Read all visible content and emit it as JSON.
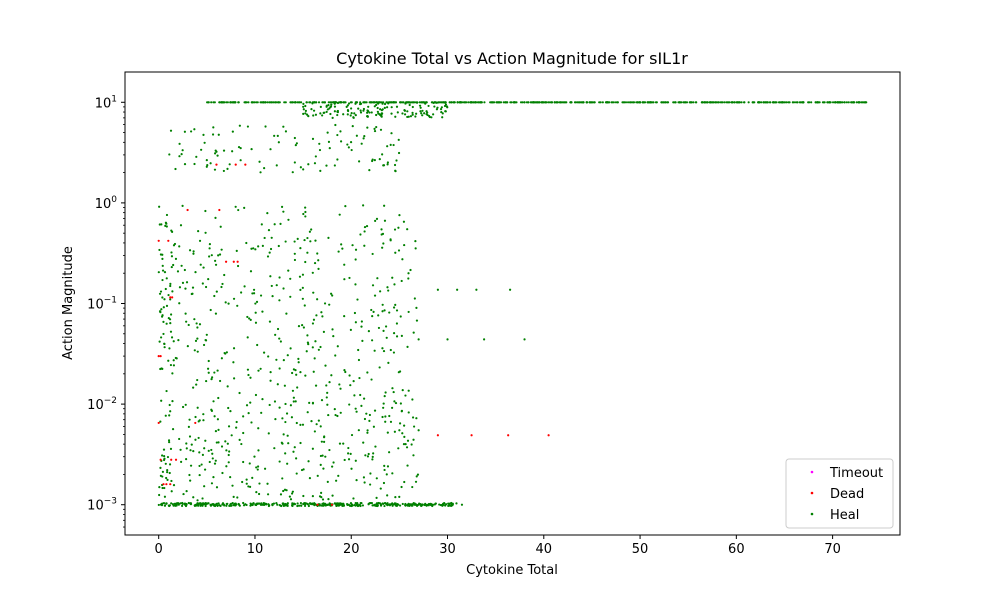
{
  "chart_data": {
    "type": "scatter",
    "title": "Cytokine Total vs Action Magnitude for sIL1r",
    "xlabel": "Cytokine Total",
    "ylabel": "Action Magnitude",
    "xlim": [
      -3.5,
      77
    ],
    "ylim": [
      0.0005,
      20
    ],
    "yscale": "log",
    "x_ticks": [
      0,
      10,
      20,
      30,
      40,
      50,
      60,
      70
    ],
    "x_tick_labels": [
      "0",
      "10",
      "20",
      "30",
      "40",
      "50",
      "60",
      "70"
    ],
    "y_ticks": [
      0.001,
      0.01,
      0.1,
      1,
      10
    ],
    "y_tick_labels": [
      {
        "base": "10",
        "exp": "−3"
      },
      {
        "base": "10",
        "exp": "−2"
      },
      {
        "base": "10",
        "exp": "−1"
      },
      {
        "base": "10",
        "exp": "0"
      },
      {
        "base": "10",
        "exp": "1"
      }
    ],
    "grid": false,
    "legend_position": "lower-right",
    "series": [
      {
        "name": "Timeout",
        "color": "#ff00ff",
        "points": []
      },
      {
        "name": "Dead",
        "color": "#ff0000",
        "points": [
          [
            6,
            2.4
          ],
          [
            8,
            2.4
          ],
          [
            9,
            2.4
          ],
          [
            3,
            0.85
          ],
          [
            6.3,
            0.85
          ],
          [
            0,
            0.42
          ],
          [
            1,
            0.42
          ],
          [
            7,
            0.26
          ],
          [
            7.8,
            0.26
          ],
          [
            8.2,
            0.26
          ],
          [
            1.2,
            0.115
          ],
          [
            1.4,
            0.115
          ],
          [
            0,
            0.03
          ],
          [
            0.2,
            0.03
          ],
          [
            0,
            0.0065
          ],
          [
            3.8,
            0.0065
          ],
          [
            0.2,
            0.0028
          ],
          [
            1.3,
            0.0028
          ],
          [
            1.8,
            0.0028
          ],
          [
            0.5,
            0.0016
          ],
          [
            0.8,
            0.0016
          ],
          [
            1.2,
            0.0016
          ],
          [
            16.5,
            0.001
          ],
          [
            18,
            0.001
          ],
          [
            29,
            0.0049
          ],
          [
            32.5,
            0.0049
          ],
          [
            36.3,
            0.0049
          ],
          [
            40.5,
            0.0049
          ]
        ]
      },
      {
        "name": "Heal",
        "color": "#008000",
        "points": [
          [
            29,
            0.137
          ],
          [
            31,
            0.137
          ],
          [
            33,
            0.137
          ],
          [
            36.5,
            0.137
          ],
          [
            27,
            0.044
          ],
          [
            30,
            0.044
          ],
          [
            33.8,
            0.044
          ],
          [
            38,
            0.044
          ],
          [
            25,
            0.0055
          ],
          [
            27,
            0.0055
          ],
          [
            31.5,
            0.001
          ],
          [
            28,
            0.001
          ]
        ],
        "generated": [
          {
            "x": [
              5,
              73.5
            ],
            "y": [
              10,
              10
            ],
            "count": 620,
            "seed": 11,
            "ydist": "const"
          },
          {
            "x": [
              15,
              30
            ],
            "y": [
              7,
              10
            ],
            "count": 150,
            "seed": 12,
            "ydist": "log"
          },
          {
            "x": [
              1,
              25
            ],
            "y": [
              2,
              6
            ],
            "count": 110,
            "seed": 13,
            "ydist": "log"
          },
          {
            "x": [
              0,
              27
            ],
            "y": [
              0.015,
              0.95
            ],
            "count": 360,
            "seed": 14,
            "ydist": "log"
          },
          {
            "x": [
              2,
              27
            ],
            "y": [
              0.0011,
              0.015
            ],
            "count": 300,
            "seed": 15,
            "ydist": "log"
          },
          {
            "x": [
              0,
              31
            ],
            "y": [
              0.00097,
              0.00104
            ],
            "count": 420,
            "seed": 16,
            "ydist": "const"
          },
          {
            "x": [
              0,
              1.6
            ],
            "y": [
              0.001,
              0.95
            ],
            "count": 90,
            "seed": 17,
            "ydist": "log"
          }
        ]
      }
    ]
  }
}
